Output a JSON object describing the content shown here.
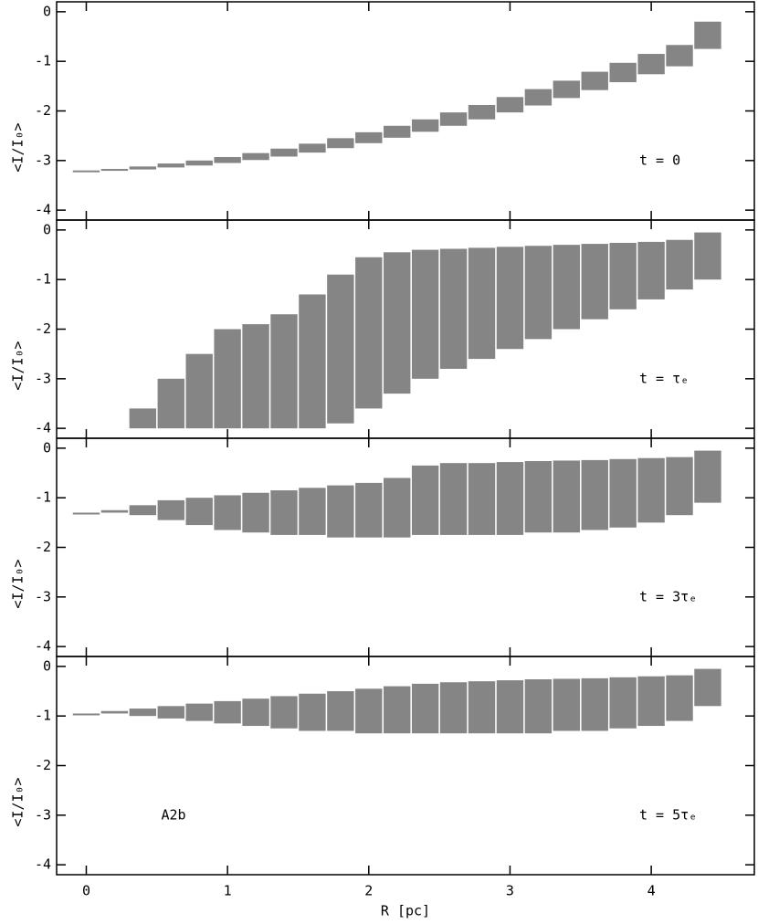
{
  "chart_data": [
    {
      "type": "range",
      "color": "#333333",
      "ylabel": "<I/I₀>",
      "annotation": "t = 0",
      "xlim": [
        -0.21,
        4.73
      ],
      "xticks": [
        0,
        1,
        2,
        3,
        4
      ],
      "ylim": [
        -4.2,
        0.2
      ],
      "yticks": [
        0,
        -1,
        -2,
        -3,
        -4
      ],
      "x": [
        0,
        0.2,
        0.4,
        0.6,
        0.8,
        1.0,
        1.2,
        1.4,
        1.6,
        1.8,
        2.0,
        2.2,
        2.4,
        2.6,
        2.8,
        3.0,
        3.2,
        3.4,
        3.6,
        3.8,
        4.0,
        4.2,
        4.4
      ],
      "high": [
        -3.2,
        -3.17,
        -3.12,
        -3.06,
        -3.0,
        -2.93,
        -2.85,
        -2.76,
        -2.66,
        -2.55,
        -2.43,
        -2.3,
        -2.17,
        -2.03,
        -1.88,
        -1.72,
        -1.56,
        -1.39,
        -1.21,
        -1.03,
        -0.85,
        -0.67,
        -0.2
      ],
      "low": [
        -3.2,
        -3.2,
        -3.18,
        -3.14,
        -3.1,
        -3.05,
        -2.99,
        -2.92,
        -2.84,
        -2.75,
        -2.65,
        -2.54,
        -2.42,
        -2.3,
        -2.17,
        -2.03,
        -1.89,
        -1.74,
        -1.58,
        -1.42,
        -1.26,
        -1.1,
        -0.75
      ]
    },
    {
      "type": "range",
      "color": "#333333",
      "ylabel": "<I/I₀>",
      "annotation": "t = τₑ",
      "xlim": [
        -0.21,
        4.73
      ],
      "xticks": [
        0,
        1,
        2,
        3,
        4
      ],
      "ylim": [
        -4.2,
        0.2
      ],
      "yticks": [
        0,
        -1,
        -2,
        -3,
        -4
      ],
      "x": [
        0,
        0.2,
        0.4,
        0.6,
        0.8,
        1.0,
        1.2,
        1.4,
        1.6,
        1.8,
        2.0,
        2.2,
        2.4,
        2.6,
        2.8,
        3.0,
        3.2,
        3.4,
        3.6,
        3.8,
        4.0,
        4.2,
        4.4
      ],
      "high": [
        null,
        null,
        -3.6,
        -3.0,
        -2.5,
        -2.0,
        -1.9,
        -1.7,
        -1.3,
        -0.9,
        -0.55,
        -0.45,
        -0.4,
        -0.38,
        -0.36,
        -0.34,
        -0.32,
        -0.3,
        -0.28,
        -0.26,
        -0.24,
        -0.2,
        -0.05
      ],
      "low": [
        null,
        null,
        -4.0,
        -4.0,
        -4.0,
        -4.0,
        -4.0,
        -4.0,
        -4.0,
        -3.9,
        -3.6,
        -3.3,
        -3.0,
        -2.8,
        -2.6,
        -2.4,
        -2.2,
        -2.0,
        -1.8,
        -1.6,
        -1.4,
        -1.2,
        -1.0
      ]
    },
    {
      "type": "range",
      "color": "#333333",
      "ylabel": "<I/I₀>",
      "annotation": "t = 3τₑ",
      "xlim": [
        -0.21,
        4.73
      ],
      "xticks": [
        0,
        1,
        2,
        3,
        4
      ],
      "ylim": [
        -4.2,
        0.2
      ],
      "yticks": [
        0,
        -1,
        -2,
        -3,
        -4
      ],
      "x": [
        0,
        0.2,
        0.4,
        0.6,
        0.8,
        1.0,
        1.2,
        1.4,
        1.6,
        1.8,
        2.0,
        2.2,
        2.4,
        2.6,
        2.8,
        3.0,
        3.2,
        3.4,
        3.6,
        3.8,
        4.0,
        4.2,
        4.4
      ],
      "high": [
        -1.3,
        -1.25,
        -1.15,
        -1.05,
        -1.0,
        -0.95,
        -0.9,
        -0.85,
        -0.8,
        -0.75,
        -0.7,
        -0.6,
        -0.35,
        -0.3,
        -0.3,
        -0.28,
        -0.26,
        -0.25,
        -0.24,
        -0.22,
        -0.2,
        -0.18,
        -0.05
      ],
      "low": [
        -1.3,
        -1.3,
        -1.35,
        -1.45,
        -1.55,
        -1.65,
        -1.7,
        -1.75,
        -1.75,
        -1.8,
        -1.8,
        -1.8,
        -1.75,
        -1.75,
        -1.75,
        -1.75,
        -1.7,
        -1.7,
        -1.65,
        -1.6,
        -1.5,
        -1.35,
        -1.1
      ]
    },
    {
      "type": "range",
      "color": "#333333",
      "ylabel": "<I/I₀>",
      "annotation": "t = 5τₑ",
      "label": "A2b",
      "xlabel": "R [pc]",
      "xlim": [
        -0.21,
        4.73
      ],
      "xticks": [
        0,
        1,
        2,
        3,
        4
      ],
      "ylim": [
        -4.2,
        0.2
      ],
      "yticks": [
        0,
        -1,
        -2,
        -3,
        -4
      ],
      "x": [
        0,
        0.2,
        0.4,
        0.6,
        0.8,
        1.0,
        1.2,
        1.4,
        1.6,
        1.8,
        2.0,
        2.2,
        2.4,
        2.6,
        2.8,
        3.0,
        3.2,
        3.4,
        3.6,
        3.8,
        4.0,
        4.2,
        4.4
      ],
      "high": [
        -0.95,
        -0.9,
        -0.85,
        -0.8,
        -0.75,
        -0.7,
        -0.65,
        -0.6,
        -0.55,
        -0.5,
        -0.45,
        -0.4,
        -0.35,
        -0.32,
        -0.3,
        -0.28,
        -0.26,
        -0.25,
        -0.24,
        -0.22,
        -0.2,
        -0.18,
        -0.05
      ],
      "low": [
        -0.95,
        -0.95,
        -1.0,
        -1.05,
        -1.1,
        -1.15,
        -1.2,
        -1.25,
        -1.3,
        -1.3,
        -1.35,
        -1.35,
        -1.35,
        -1.35,
        -1.35,
        -1.35,
        -1.35,
        -1.3,
        -1.3,
        -1.25,
        -1.2,
        -1.1,
        -0.8
      ]
    }
  ]
}
